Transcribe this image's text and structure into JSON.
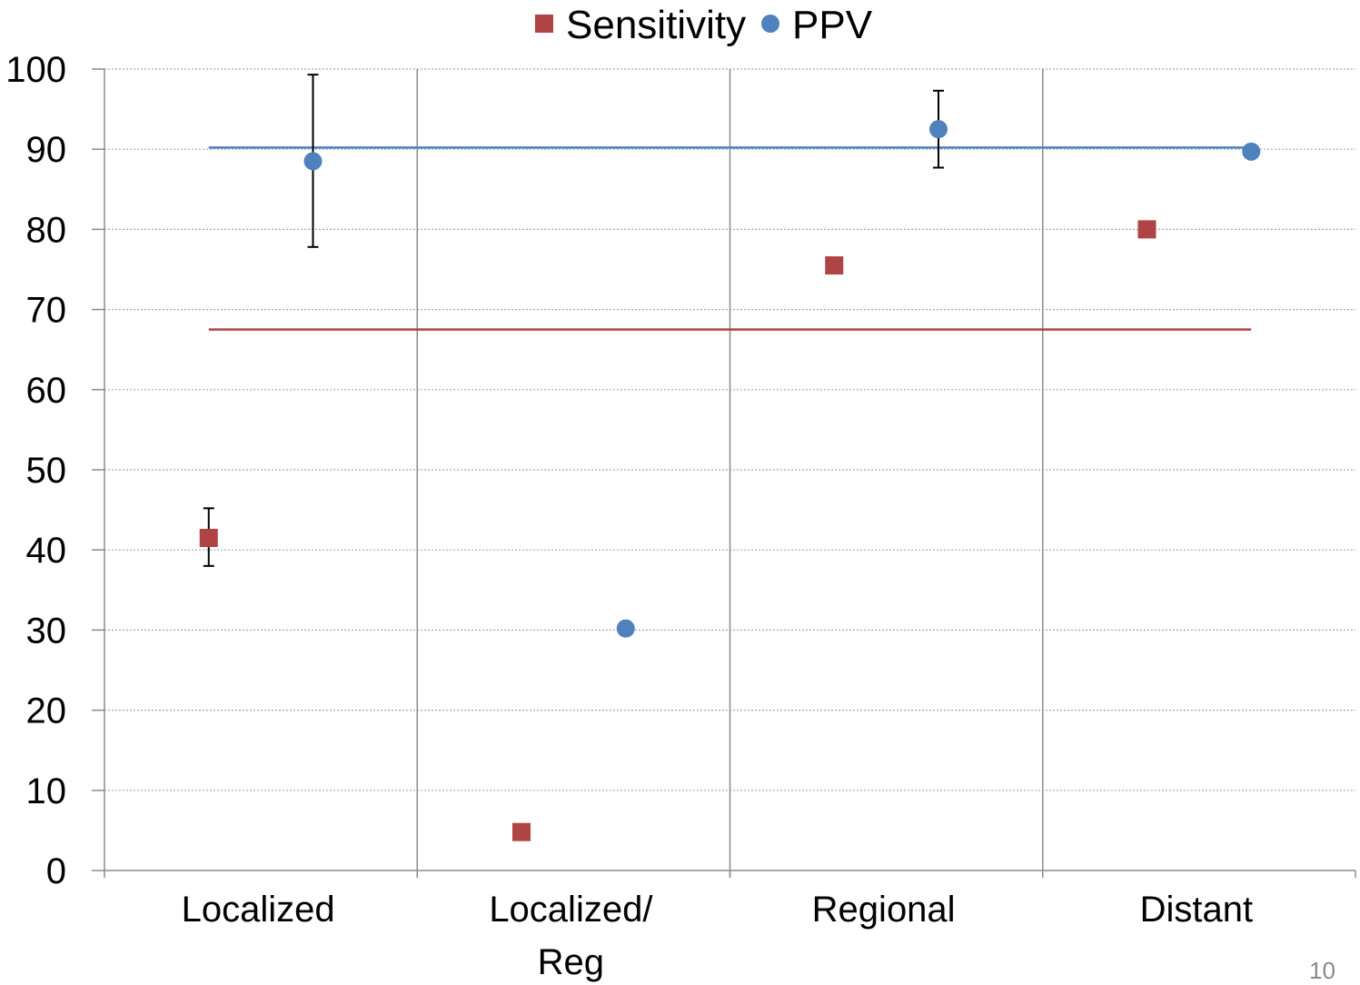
{
  "chart_data": {
    "type": "scatter",
    "title": "",
    "xlabel": "",
    "ylabel": "",
    "ylim": [
      0,
      100
    ],
    "y_ticks": [
      "0",
      "10",
      "20",
      "30",
      "40",
      "50",
      "60",
      "70",
      "80",
      "90",
      "100"
    ],
    "categories": [
      {
        "lines": [
          "Localized"
        ]
      },
      {
        "lines": [
          "Localized/",
          "Reg"
        ]
      },
      {
        "lines": [
          "Regional"
        ]
      },
      {
        "lines": [
          "Distant"
        ]
      }
    ],
    "grid": "horizontal dotted",
    "legend_position": "top",
    "series": [
      {
        "name": "Sensitivity",
        "marker": "square",
        "color": "#b04343",
        "values": [
          41.5,
          4.8,
          75.5,
          80.0
        ],
        "error_bars": [
          [
            38.0,
            45.2
          ],
          null,
          null,
          null
        ],
        "reference_line": 67.5
      },
      {
        "name": "PPV",
        "marker": "circle",
        "color": "#4f81bd",
        "values": [
          88.5,
          30.2,
          92.5,
          89.7
        ],
        "error_bars": [
          [
            77.8,
            99.3
          ],
          null,
          [
            87.7,
            97.3
          ],
          null
        ],
        "reference_line": 90.2
      }
    ]
  },
  "page_number": "10"
}
